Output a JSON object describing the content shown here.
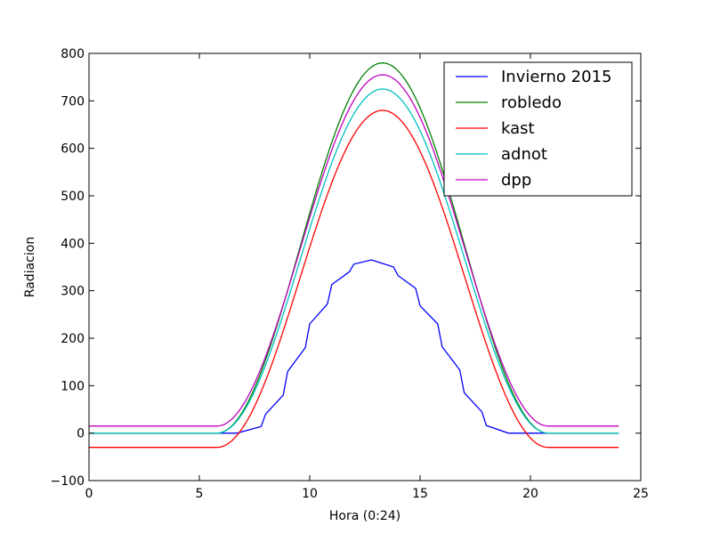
{
  "chart_data": {
    "type": "line",
    "title": "",
    "xlabel": "Hora (0:24)",
    "ylabel": "Radiacion",
    "xlim": [
      0,
      25
    ],
    "ylim": [
      -100,
      800
    ],
    "x_ticks": [
      0,
      5,
      10,
      15,
      20,
      25
    ],
    "y_ticks": [
      -100,
      0,
      100,
      200,
      300,
      400,
      500,
      600,
      700,
      800
    ],
    "x_tick_labels": [
      "0",
      "5",
      "10",
      "15",
      "20",
      "25"
    ],
    "y_tick_labels": [
      "−100",
      "0",
      "100",
      "200",
      "300",
      "400",
      "500",
      "600",
      "700",
      "800"
    ],
    "grid": false,
    "legend_position": "top-right",
    "series": [
      {
        "name": "Invierno 2015",
        "color": "#0000ff",
        "x": [
          0,
          6.0,
          6.7,
          7.8,
          8.0,
          8.8,
          9.0,
          9.8,
          10.0,
          10.8,
          11.0,
          11.8,
          12.0,
          12.8,
          13.0,
          13.8,
          14.0,
          14.8,
          15.0,
          15.8,
          16.0,
          16.8,
          17.0,
          17.8,
          18.0,
          19.0,
          24
        ],
        "y": [
          0,
          0,
          0,
          14,
          40,
          80,
          130,
          180,
          230,
          272,
          313,
          340,
          356,
          365,
          362,
          350,
          332,
          305,
          268,
          230,
          182,
          133,
          85,
          45,
          16,
          0,
          0
        ]
      },
      {
        "name": "robledo",
        "color": "#008000",
        "peak": 780,
        "base": 0,
        "rise_start": 5.8,
        "peak_hour": 13.3,
        "rise_end": 20.8
      },
      {
        "name": "kast",
        "color": "#ff0000",
        "peak": 680,
        "base": -30,
        "rise_start": 5.8,
        "peak_hour": 13.3,
        "rise_end": 20.8
      },
      {
        "name": "adnot",
        "color": "#00bfbf",
        "peak": 725,
        "base": 0,
        "rise_start": 5.8,
        "peak_hour": 13.3,
        "rise_end": 20.8
      },
      {
        "name": "dpp",
        "color": "#bf00bf",
        "peak": 755,
        "base": 15,
        "rise_start": 5.8,
        "peak_hour": 13.3,
        "rise_end": 20.8
      }
    ]
  }
}
